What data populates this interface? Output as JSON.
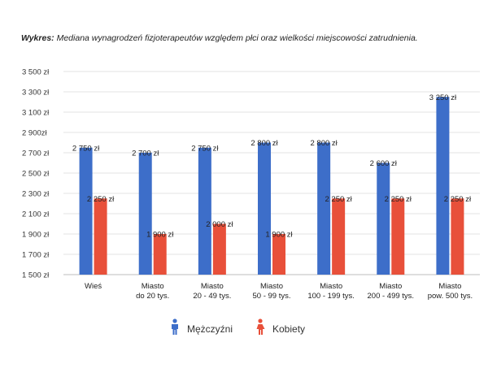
{
  "title": {
    "prefix": "Wykres:",
    "text": "Mediana wynagrodzeń fizjoterapeutów względem płci oraz wielkości miejscowości zatrudnienia."
  },
  "chart_data": {
    "type": "bar",
    "categories": [
      [
        "Wieś"
      ],
      [
        "Miasto",
        "do 20 tys."
      ],
      [
        "Miasto",
        "20 - 49 tys."
      ],
      [
        "Miasto",
        "50 - 99 tys."
      ],
      [
        "Miasto",
        "100 - 199 tys."
      ],
      [
        "Miasto",
        "200 - 499 tys."
      ],
      [
        "Miasto",
        "pow. 500 tys."
      ]
    ],
    "series": [
      {
        "name": "Mężczyźni",
        "color": "#3d6ec9",
        "icon": "male-icon",
        "values": [
          2750,
          2700,
          2750,
          2800,
          2800,
          2600,
          3250
        ],
        "labels": [
          "2 750 zł",
          "2 700 zł",
          "2 750 zł",
          "2 800 zł",
          "2 800 zł",
          "2 600 zł",
          "3 250 zł"
        ]
      },
      {
        "name": "Kobiety",
        "color": "#e8503a",
        "icon": "female-icon",
        "values": [
          2250,
          1900,
          2000,
          1900,
          2250,
          2250,
          2250
        ],
        "labels": [
          "2 250 zł",
          "1 900 zł",
          "2 000 zł",
          "1 900 zł",
          "2 250 zł",
          "2 250 zł",
          "2 250 zł"
        ]
      }
    ],
    "ylim": [
      1500,
      3500
    ],
    "yticks": [
      1500,
      1700,
      1900,
      2100,
      2300,
      2500,
      2700,
      2900,
      3100,
      3300,
      3500
    ],
    "ytick_labels": [
      "1 500 zł",
      "1 700 zł",
      "1 900 zł",
      "2 100 zł",
      "2 300 zł",
      "2 500 zł",
      "2 700 zł",
      "2 900zł",
      "3 100 zł",
      "3 300 zł",
      "3 500 zł"
    ],
    "grid": true,
    "legend_position": "bottom"
  }
}
